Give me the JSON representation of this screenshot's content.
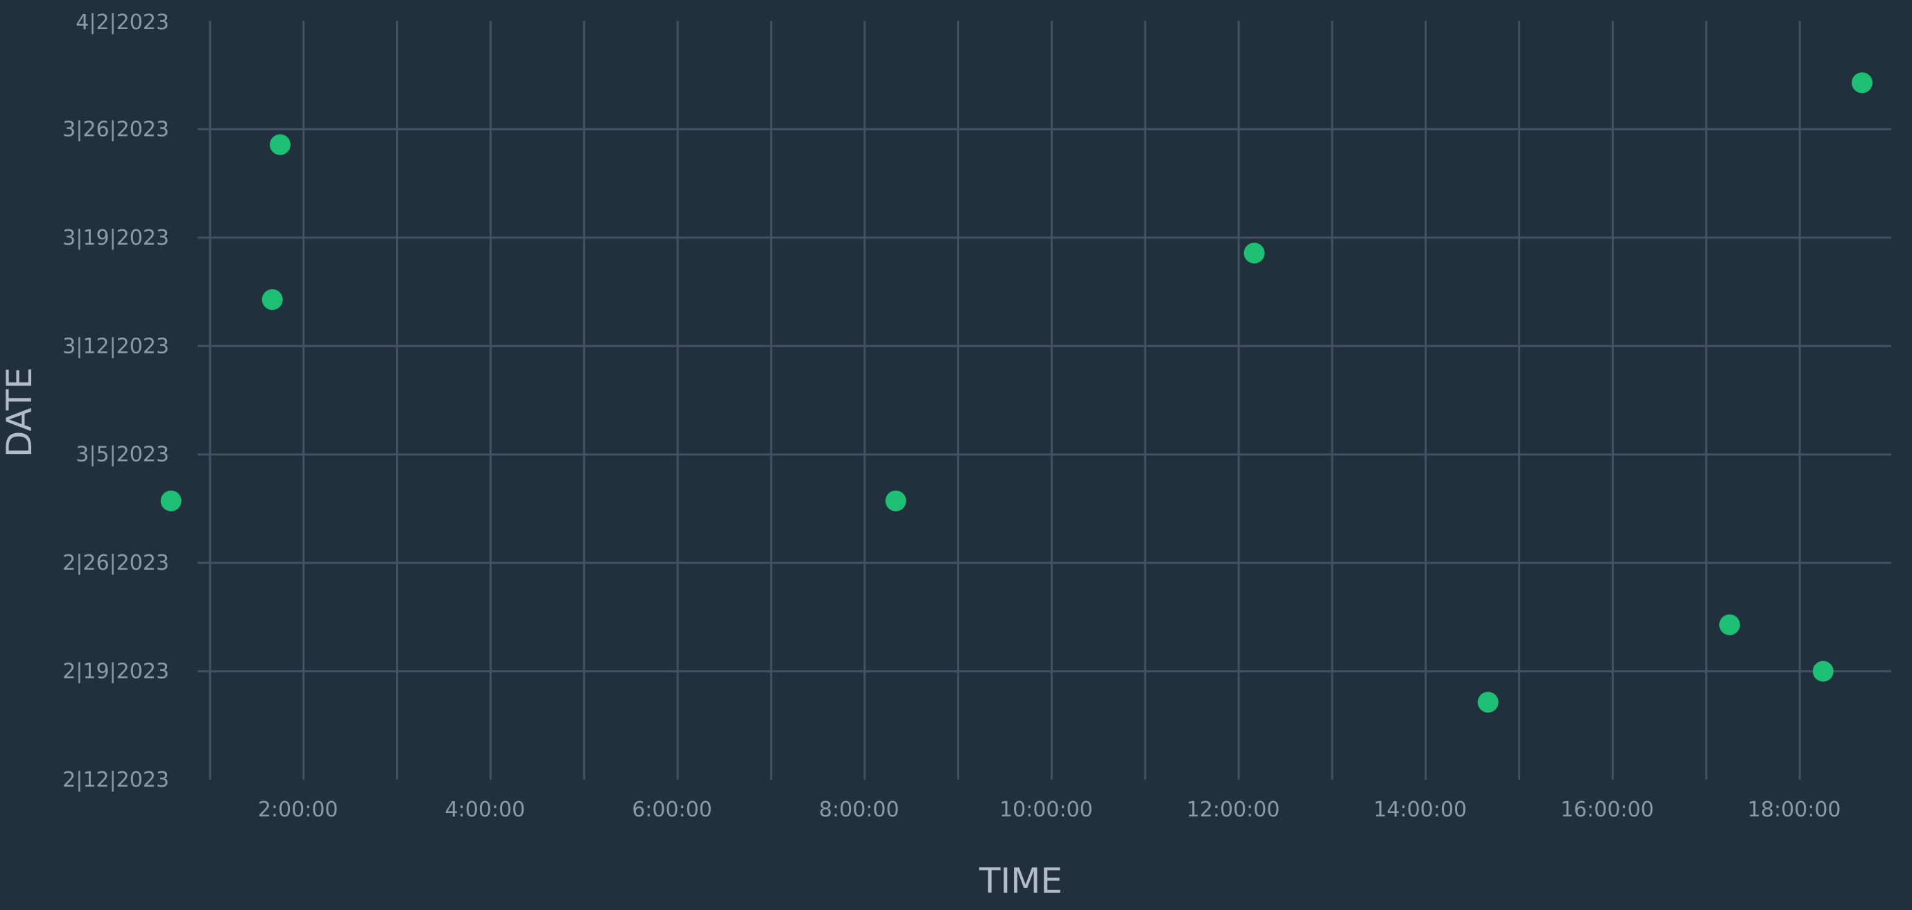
{
  "chart_data": {
    "type": "scatter",
    "title": "",
    "xlabel": "TIME",
    "ylabel": "DATE",
    "x_tick_labels": [
      "2:00:00",
      "4:00:00",
      "6:00:00",
      "8:00:00",
      "10:00:00",
      "12:00:00",
      "14:00:00",
      "16:00:00",
      "18:00:00"
    ],
    "y_tick_labels": [
      "4|2|2023",
      "3|26|2023",
      "3|19|2023",
      "3|12|2023",
      "3|5|2023",
      "2|26|2023",
      "2|19|2023",
      "2|12|2023"
    ],
    "xlim": [
      "0:00:00",
      "19:00:00"
    ],
    "ylim": [
      "2023-02-12",
      "2023-04-02"
    ],
    "grid": true,
    "marker_color": "#1dbf73",
    "background_color": "#222f3d",
    "grid_color": "#445163",
    "points": [
      {
        "x": "0:35:00",
        "y": "2023-03-02"
      },
      {
        "x": "1:40:00",
        "y": "2023-03-15"
      },
      {
        "x": "1:45:00",
        "y": "2023-03-25"
      },
      {
        "x": "8:20:00",
        "y": "2023-03-02"
      },
      {
        "x": "12:10:00",
        "y": "2023-03-18"
      },
      {
        "x": "14:40:00",
        "y": "2023-02-17"
      },
      {
        "x": "17:15:00",
        "y": "2023-02-22"
      },
      {
        "x": "18:15:00",
        "y": "2023-02-19"
      },
      {
        "x": "18:40:00",
        "y": "2023-03-29"
      }
    ]
  }
}
